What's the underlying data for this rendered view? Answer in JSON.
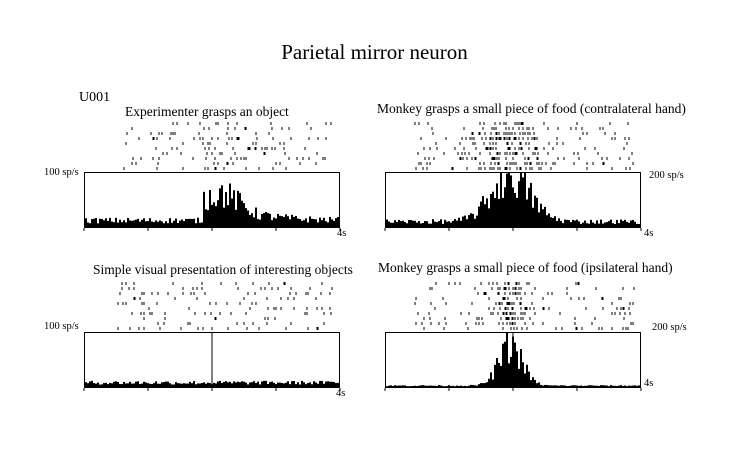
{
  "page_title": "Parietal mirror neuron",
  "unit": "U001",
  "chart_data": [
    {
      "type": "raster-histogram",
      "title": "Experimenter grasps an object",
      "rate_scale_label": "100 sp/s",
      "time_end_label": "4s",
      "x_range": [
        0,
        4
      ],
      "y_max": 100,
      "alignment_time": 2,
      "alignment_line": false,
      "trials": 10,
      "baseline": 12,
      "peak": {
        "time": 2.1,
        "rate": 62,
        "width": 0.35
      },
      "histogram_pattern": "rise-after-alignment",
      "raster_density": [
        0.5,
        1.2
      ]
    },
    {
      "type": "raster-histogram",
      "title": "Monkey grasps a small piece of food (contralateral hand)",
      "rate_scale_label": "200 sp/s",
      "time_end_label": "4s",
      "x_range": [
        0,
        4
      ],
      "y_max": 200,
      "alignment_time": 2,
      "alignment_line": false,
      "trials": 10,
      "baseline": 20,
      "peak": {
        "time": 1.95,
        "rate": 190,
        "width": 0.3
      },
      "histogram_pattern": "bell",
      "raster_density": [
        0.8,
        4.0
      ]
    },
    {
      "type": "raster-histogram",
      "title": "Simple visual presentation of interesting objects",
      "rate_scale_label": "100 sp/s",
      "time_end_label": "4s",
      "x_range": [
        0,
        4
      ],
      "y_max": 100,
      "alignment_time": 2,
      "alignment_line": true,
      "trials": 10,
      "baseline": 8,
      "peak": {
        "time": 2.0,
        "rate": 8,
        "width": 0.5
      },
      "histogram_pattern": "flat",
      "raster_density": [
        0.6,
        0.6
      ]
    },
    {
      "type": "raster-histogram",
      "title": "Monkey grasps a small piece of food (ipsilateral hand)",
      "rate_scale_label": "200 sp/s",
      "time_end_label": "4s",
      "x_range": [
        0,
        4
      ],
      "y_max": 200,
      "alignment_time": 2,
      "alignment_line": true,
      "trials": 10,
      "baseline": 5,
      "peak": {
        "time": 1.95,
        "rate": 150,
        "width": 0.18
      },
      "histogram_pattern": "bell",
      "raster_density": [
        0.5,
        4.5
      ]
    }
  ]
}
